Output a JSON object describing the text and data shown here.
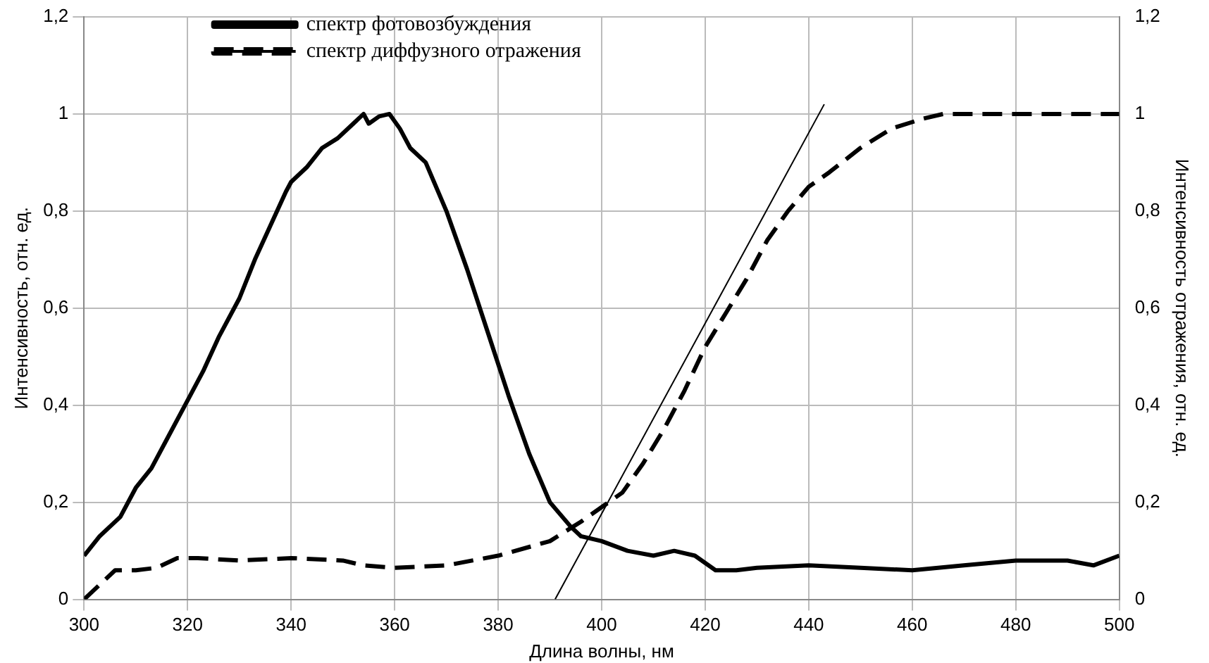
{
  "chart_data": {
    "type": "line",
    "xlabel": "Длина волны, нм",
    "ylabel": "Интенсивность, отн. ед.",
    "y2label": "Интенсивность отражения, отн. ед.",
    "xlim": [
      300,
      500
    ],
    "xticks": [
      300,
      320,
      340,
      360,
      380,
      400,
      420,
      440,
      460,
      480,
      500
    ],
    "ylim": [
      0,
      1.2
    ],
    "yticks": [
      0,
      {
        "value": 0.2,
        "label": "0,2"
      },
      {
        "value": 0.4,
        "label": "0,4"
      },
      {
        "value": 0.6,
        "label": "0,6"
      },
      {
        "value": 0.8,
        "label": "0,8"
      },
      1,
      {
        "value": 1.2,
        "label": "1,2"
      }
    ],
    "y2lim": [
      0,
      1.2
    ],
    "y2ticks": [
      0,
      {
        "value": 0.2,
        "label": "0,2"
      },
      {
        "value": 0.4,
        "label": "0,4"
      },
      {
        "value": 0.6,
        "label": "0,6"
      },
      {
        "value": 0.8,
        "label": "0,8"
      },
      1,
      {
        "value": 1.2,
        "label": "1,2"
      }
    ],
    "grid": true,
    "legend": "top left",
    "marker": "none",
    "series": [
      {
        "name": "спектр фотовозбуждения",
        "color": "#000000",
        "line_style": "solid",
        "x": [
          300,
          303,
          307,
          310,
          313,
          316,
          320,
          323,
          326,
          330,
          333,
          336,
          339,
          340,
          343,
          346,
          349,
          352,
          354,
          355,
          357,
          359,
          361,
          363,
          366,
          370,
          374,
          378,
          382,
          386,
          390,
          394,
          396,
          400,
          405,
          410,
          414,
          418,
          422,
          426,
          430,
          440,
          450,
          460,
          470,
          480,
          490,
          495,
          500
        ],
        "values": [
          0.09,
          0.13,
          0.17,
          0.23,
          0.27,
          0.33,
          0.41,
          0.47,
          0.54,
          0.62,
          0.7,
          0.77,
          0.84,
          0.86,
          0.89,
          0.93,
          0.95,
          0.98,
          1.0,
          0.98,
          0.995,
          1.0,
          0.97,
          0.93,
          0.9,
          0.8,
          0.68,
          0.55,
          0.42,
          0.3,
          0.2,
          0.15,
          0.13,
          0.12,
          0.1,
          0.09,
          0.1,
          0.09,
          0.06,
          0.06,
          0.065,
          0.07,
          0.065,
          0.06,
          0.07,
          0.08,
          0.08,
          0.07,
          0.09
        ]
      },
      {
        "name": "спектр диффузного отражения",
        "color": "#000000",
        "line_style": "dashed",
        "axis": "y2",
        "x": [
          300,
          303,
          306,
          310,
          314,
          318,
          322,
          330,
          340,
          350,
          354,
          360,
          370,
          380,
          390,
          396,
          400,
          404,
          408,
          412,
          416,
          420,
          424,
          428,
          432,
          436,
          440,
          444,
          450,
          456,
          462,
          466,
          480,
          500
        ],
        "values": [
          0.0,
          0.03,
          0.06,
          0.06,
          0.065,
          0.085,
          0.085,
          0.08,
          0.085,
          0.08,
          0.07,
          0.065,
          0.07,
          0.09,
          0.12,
          0.16,
          0.19,
          0.22,
          0.28,
          0.35,
          0.43,
          0.52,
          0.59,
          0.66,
          0.74,
          0.8,
          0.85,
          0.88,
          0.93,
          0.97,
          0.99,
          1.0,
          1.0,
          1.0
        ]
      },
      {
        "type": "line",
        "color": "#000000",
        "line_style": "solid",
        "x": [
          391,
          443
        ],
        "values": [
          0,
          1.02
        ]
      }
    ]
  }
}
